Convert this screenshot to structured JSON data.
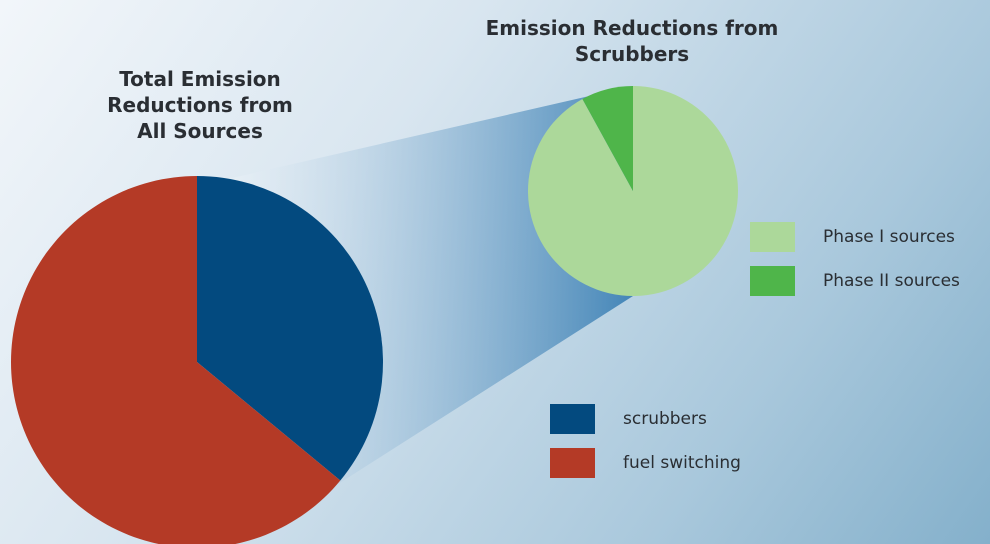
{
  "chart_data": [
    {
      "type": "pie",
      "title_lines": [
        "Total Emission",
        "Reductions from",
        "All Sources"
      ],
      "slices": [
        {
          "label": "scrubbers",
          "value": 36,
          "color": "#034a7f"
        },
        {
          "label": "fuel switching",
          "value": 64,
          "color": "#b43a26"
        }
      ]
    },
    {
      "type": "pie",
      "title_lines": [
        "Emission Reductions from",
        "Scrubbers"
      ],
      "slices": [
        {
          "label": "Phase I sources",
          "value": 92,
          "color": "#acd89a"
        },
        {
          "label": "Phase II sources",
          "value": 8,
          "color": "#4fb54a"
        }
      ]
    }
  ],
  "legend": {
    "phase1": {
      "label": "Phase I sources",
      "color": "#acd89a"
    },
    "phase2": {
      "label": "Phase II sources",
      "color": "#4fb54a"
    },
    "scrubbers": {
      "label": "scrubbers",
      "color": "#034a7f"
    },
    "fuel": {
      "label": "fuel switching",
      "color": "#b43a26"
    }
  }
}
